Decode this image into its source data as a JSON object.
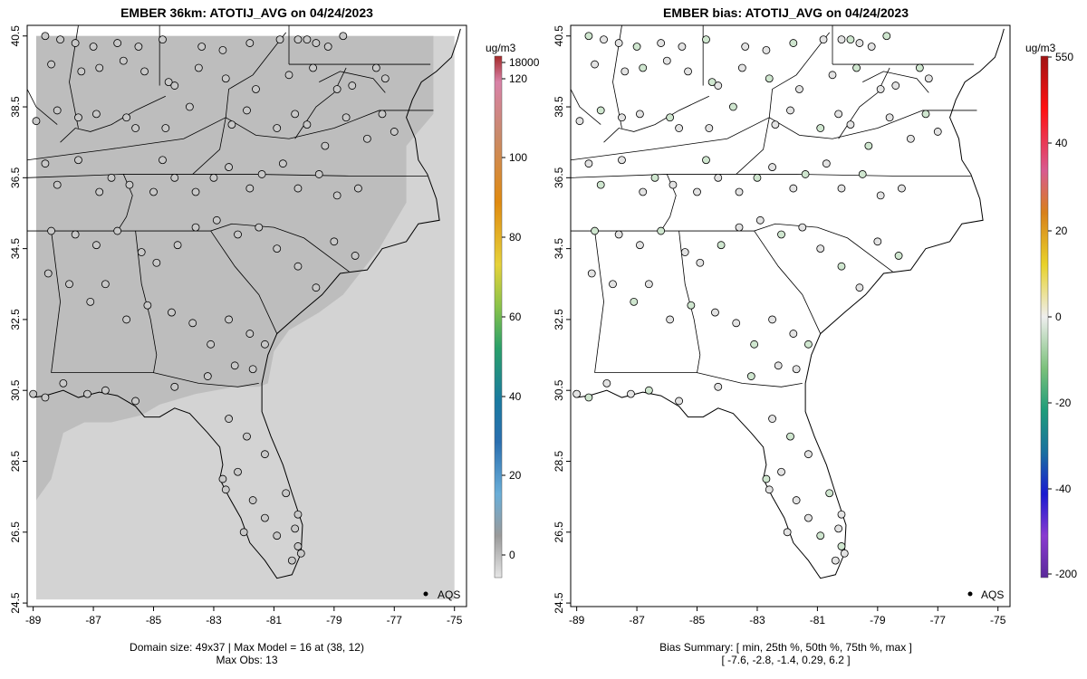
{
  "left": {
    "title": "EMBER 36km: ATOTIJ_AVG on 04/24/2023",
    "footer_line1": "Domain size: 49x37 | Max Model = 16 at (38, 12)",
    "footer_line2": "Max Obs: 13",
    "legend_unit": "ug/m3",
    "legend_ticks": [
      "18000",
      "120",
      "100",
      "80",
      "60",
      "40",
      "20",
      "0"
    ],
    "point_label": "AQS"
  },
  "right": {
    "title": "EMBER bias: ATOTIJ_AVG on 04/24/2023",
    "footer_line1": "Bias Summary: [ min, 25th %, 50th %, 75th %, max ]",
    "footer_line2": "[ -7.6,   -2.8,   -1.4,   0.29,   6.2 ]",
    "legend_unit": "ug/m3",
    "legend_ticks": [
      "550",
      "40",
      "20",
      "0",
      "-20",
      "-40",
      "-200"
    ],
    "point_label": "AQS"
  },
  "axes": {
    "x_ticks": [
      "-89",
      "-87",
      "-85",
      "-83",
      "-81",
      "-79",
      "-77",
      "-75"
    ],
    "y_ticks": [
      "40.5",
      "38.5",
      "36.5",
      "34.5",
      "32.5",
      "30.5",
      "28.5",
      "26.5",
      "24.5"
    ]
  },
  "colors": {
    "model_field": "#bdbdbd",
    "domain_background": "#d3d3d3",
    "site_fill": "#c8c8c8",
    "bias_fill_near_zero": "#e3e3e3",
    "bias_fill_negative": "#cfe6cf"
  },
  "map_data": {
    "x_range": [
      -89.2,
      -74.6
    ],
    "y_range": [
      24.4,
      40.8
    ],
    "model_domain": {
      "lon": [
        -88.9,
        -75.0
      ],
      "lat": [
        24.6,
        40.5
      ]
    },
    "sites": [
      [
        -88.6,
        40.5
      ],
      [
        -88.1,
        40.4
      ],
      [
        -87.6,
        40.3
      ],
      [
        -87.0,
        40.2
      ],
      [
        -86.2,
        40.3
      ],
      [
        -85.5,
        40.2
      ],
      [
        -84.7,
        40.4
      ],
      [
        -83.4,
        40.2
      ],
      [
        -82.7,
        40.1
      ],
      [
        -81.8,
        40.3
      ],
      [
        -80.8,
        40.4
      ],
      [
        -80.2,
        40.4
      ],
      [
        -79.9,
        40.4
      ],
      [
        -79.6,
        40.3
      ],
      [
        -79.2,
        40.2
      ],
      [
        -78.7,
        40.5
      ],
      [
        -88.4,
        39.7
      ],
      [
        -87.4,
        39.5
      ],
      [
        -86.8,
        39.6
      ],
      [
        -86.0,
        39.8
      ],
      [
        -85.3,
        39.5
      ],
      [
        -84.5,
        39.2
      ],
      [
        -84.3,
        39.1
      ],
      [
        -83.5,
        39.6
      ],
      [
        -82.6,
        39.3
      ],
      [
        -81.6,
        39.0
      ],
      [
        -80.5,
        39.4
      ],
      [
        -79.7,
        39.6
      ],
      [
        -78.9,
        39.0
      ],
      [
        -78.4,
        39.1
      ],
      [
        -77.6,
        39.6
      ],
      [
        -77.3,
        39.3
      ],
      [
        -88.9,
        38.1
      ],
      [
        -88.2,
        38.4
      ],
      [
        -87.5,
        38.2
      ],
      [
        -86.9,
        38.3
      ],
      [
        -85.9,
        38.2
      ],
      [
        -85.6,
        37.9
      ],
      [
        -84.6,
        37.9
      ],
      [
        -83.8,
        38.5
      ],
      [
        -82.4,
        38.0
      ],
      [
        -81.9,
        38.4
      ],
      [
        -80.9,
        37.9
      ],
      [
        -80.3,
        38.3
      ],
      [
        -79.9,
        38.0
      ],
      [
        -79.3,
        37.4
      ],
      [
        -78.6,
        38.2
      ],
      [
        -77.9,
        37.6
      ],
      [
        -77.4,
        38.3
      ],
      [
        -77.0,
        37.8
      ],
      [
        -88.6,
        36.9
      ],
      [
        -88.2,
        36.3
      ],
      [
        -87.5,
        37.0
      ],
      [
        -86.8,
        36.1
      ],
      [
        -86.4,
        36.5
      ],
      [
        -85.8,
        36.3
      ],
      [
        -85.0,
        36.1
      ],
      [
        -84.7,
        37.0
      ],
      [
        -84.3,
        36.5
      ],
      [
        -83.6,
        36.1
      ],
      [
        -83.0,
        36.5
      ],
      [
        -82.5,
        36.8
      ],
      [
        -81.8,
        36.2
      ],
      [
        -81.4,
        36.6
      ],
      [
        -80.7,
        36.9
      ],
      [
        -80.2,
        36.2
      ],
      [
        -79.5,
        36.6
      ],
      [
        -78.9,
        36.0
      ],
      [
        -78.2,
        36.2
      ],
      [
        -88.4,
        35.0
      ],
      [
        -87.6,
        34.9
      ],
      [
        -86.9,
        34.6
      ],
      [
        -86.2,
        35.0
      ],
      [
        -85.4,
        34.4
      ],
      [
        -84.9,
        34.1
      ],
      [
        -84.2,
        34.6
      ],
      [
        -83.6,
        35.1
      ],
      [
        -82.9,
        35.3
      ],
      [
        -82.2,
        34.9
      ],
      [
        -81.5,
        35.1
      ],
      [
        -80.9,
        34.5
      ],
      [
        -80.2,
        34.0
      ],
      [
        -79.6,
        33.4
      ],
      [
        -79.0,
        34.7
      ],
      [
        -78.3,
        34.3
      ],
      [
        -88.5,
        33.8
      ],
      [
        -87.8,
        33.5
      ],
      [
        -87.1,
        33.0
      ],
      [
        -86.6,
        33.5
      ],
      [
        -85.9,
        32.5
      ],
      [
        -85.2,
        32.9
      ],
      [
        -84.4,
        32.7
      ],
      [
        -83.7,
        32.4
      ],
      [
        -83.1,
        31.8
      ],
      [
        -82.5,
        32.5
      ],
      [
        -81.8,
        32.1
      ],
      [
        -81.3,
        31.8
      ],
      [
        -81.7,
        31.1
      ],
      [
        -82.3,
        31.2
      ],
      [
        -83.2,
        30.9
      ],
      [
        -84.3,
        30.6
      ],
      [
        -85.6,
        30.2
      ],
      [
        -86.6,
        30.5
      ],
      [
        -87.2,
        30.4
      ],
      [
        -88.0,
        30.7
      ],
      [
        -88.6,
        30.3
      ],
      [
        -89.0,
        30.4
      ],
      [
        -82.5,
        29.7
      ],
      [
        -81.9,
        29.2
      ],
      [
        -81.3,
        28.7
      ],
      [
        -82.2,
        28.2
      ],
      [
        -82.7,
        28.0
      ],
      [
        -82.6,
        27.7
      ],
      [
        -81.7,
        27.4
      ],
      [
        -80.6,
        27.6
      ],
      [
        -80.2,
        27.0
      ],
      [
        -80.3,
        26.6
      ],
      [
        -80.2,
        26.1
      ],
      [
        -80.4,
        25.7
      ],
      [
        -80.1,
        25.9
      ],
      [
        -80.9,
        26.4
      ],
      [
        -81.3,
        26.9
      ],
      [
        -82.0,
        26.5
      ]
    ]
  }
}
